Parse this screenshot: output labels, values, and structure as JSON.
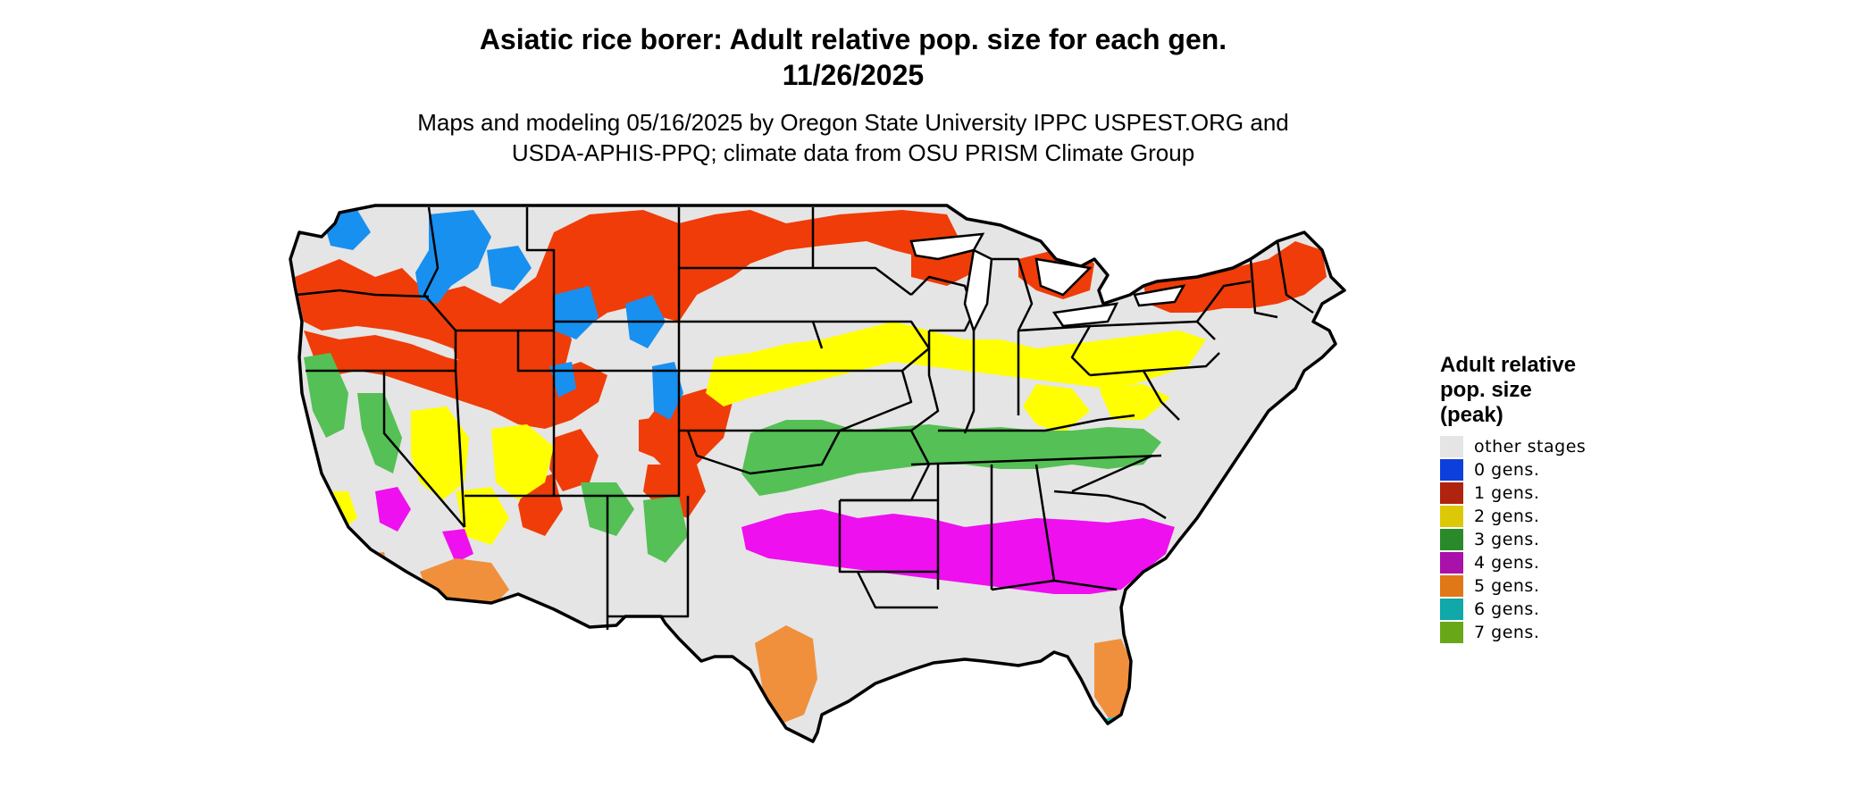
{
  "header": {
    "title_line1": "Asiatic rice borer: Adult relative pop. size for each gen.",
    "title_line2": "11/26/2025",
    "subtitle_line1": "Maps and modeling 05/16/2025 by Oregon State University IPPC USPEST.ORG and",
    "subtitle_line2": "USDA-APHIS-PPQ; climate data from OSU PRISM Climate Group"
  },
  "legend": {
    "title_line1": "Adult relative",
    "title_line2": "pop. size",
    "title_line3": "(peak)",
    "items": [
      {
        "label": "other stages",
        "color": "#e5e5e5"
      },
      {
        "label": "0 gens.",
        "color": "#0d3fdc"
      },
      {
        "label": "1 gens.",
        "color": "#b0230e"
      },
      {
        "label": "2 gens.",
        "color": "#dcc807"
      },
      {
        "label": "3 gens.",
        "color": "#2a8a2a"
      },
      {
        "label": "4 gens.",
        "color": "#aa10aa"
      },
      {
        "label": "5 gens.",
        "color": "#e07818"
      },
      {
        "label": "6 gens.",
        "color": "#10a8a8"
      },
      {
        "label": "7 gens.",
        "color": "#68a818"
      }
    ]
  },
  "map_colors": {
    "background_land": "#e5e5e5",
    "zone_1_gen": "#f03c08",
    "zone_0_gen": "#1890f0",
    "zone_2_gen": "#ffff00",
    "zone_3_gen": "#55c055",
    "zone_4_gen": "#ee10ee",
    "zone_5_gen": "#f0903c",
    "zone_6_gen": "#18c8e0",
    "border": "#000000"
  }
}
